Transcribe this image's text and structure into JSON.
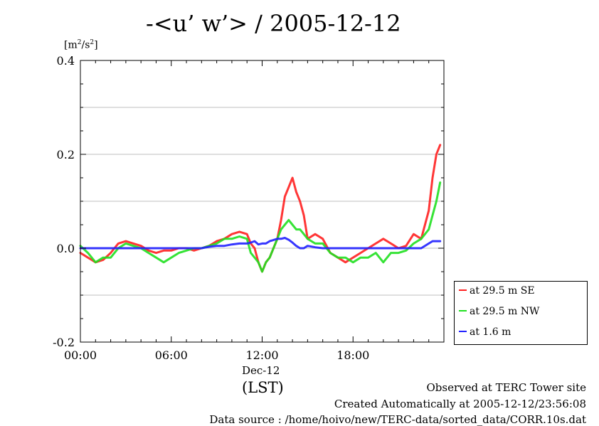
{
  "title": "-<u’ w’> / 2005-12-12",
  "unit_base": "[m",
  "unit_exp1": "2",
  "unit_mid": "/s",
  "unit_exp2": "2",
  "unit_end": "]",
  "date_label": "Dec-12",
  "lst_label": "(LST)",
  "footer": {
    "line1": "Observed at TERC Tower site",
    "line2": "Created Automatically at 2005-12-12/23:56:08",
    "line3": "Data source : /home/hoivo/new/TERC-data/sorted_data/CORR.10s.dat"
  },
  "chart_data": {
    "type": "line",
    "title": "-<u’ w’> / 2005-12-12",
    "ylabel": "[m2/s2]",
    "xlabel": "(LST)",
    "xlim": [
      0,
      24
    ],
    "ylim": [
      -0.2,
      0.4
    ],
    "grid": true,
    "legend_position": "right-bottom",
    "x_ticks": [
      "00:00",
      "06:00",
      "12:00",
      "18:00"
    ],
    "x_tick_values": [
      0,
      6,
      12,
      18
    ],
    "y_ticks": [
      "-0.2",
      "0.0",
      "0.2",
      "0.4"
    ],
    "y_tick_values": [
      -0.2,
      0.0,
      0.2,
      0.4
    ],
    "x": [
      0,
      0.5,
      1,
      1.5,
      2,
      2.5,
      3,
      3.5,
      4,
      4.5,
      5,
      5.5,
      6,
      6.5,
      7,
      7.5,
      8,
      8.5,
      9,
      9.5,
      10,
      10.5,
      11,
      11.25,
      11.5,
      11.75,
      12,
      12.25,
      12.5,
      13,
      13.25,
      13.5,
      13.75,
      14,
      14.25,
      14.5,
      14.75,
      15,
      15.5,
      16,
      16.5,
      17,
      17.5,
      18,
      18.5,
      19,
      19.5,
      20,
      20.5,
      21,
      21.5,
      22,
      22.5,
      23,
      23.25,
      23.5,
      23.75
    ],
    "series": [
      {
        "name": "at 29.5 m SE",
        "color": "#ff2020",
        "values": [
          -0.01,
          -0.02,
          -0.03,
          -0.025,
          -0.01,
          0.01,
          0.015,
          0.01,
          0.005,
          -0.005,
          -0.01,
          -0.005,
          -0.005,
          0.0,
          0.0,
          -0.005,
          0.0,
          0.005,
          0.015,
          0.02,
          0.03,
          0.035,
          0.03,
          0.01,
          0.0,
          -0.03,
          -0.05,
          -0.03,
          -0.02,
          0.02,
          0.06,
          0.11,
          0.13,
          0.15,
          0.12,
          0.1,
          0.07,
          0.02,
          0.03,
          0.02,
          -0.01,
          -0.02,
          -0.03,
          -0.02,
          -0.01,
          0.0,
          0.01,
          0.02,
          0.01,
          0.0,
          0.005,
          0.03,
          0.02,
          0.08,
          0.15,
          0.2,
          0.22
        ]
      },
      {
        "name": "at 29.5 m NW",
        "color": "#20e020",
        "values": [
          0.005,
          -0.01,
          -0.03,
          -0.02,
          -0.02,
          0.0,
          0.01,
          0.005,
          0.0,
          -0.01,
          -0.02,
          -0.03,
          -0.02,
          -0.01,
          -0.005,
          0.0,
          0.0,
          0.005,
          0.01,
          0.02,
          0.02,
          0.025,
          0.02,
          -0.01,
          -0.02,
          -0.03,
          -0.05,
          -0.03,
          -0.02,
          0.02,
          0.04,
          0.05,
          0.06,
          0.05,
          0.04,
          0.04,
          0.03,
          0.02,
          0.01,
          0.01,
          -0.01,
          -0.02,
          -0.02,
          -0.03,
          -0.02,
          -0.02,
          -0.01,
          -0.03,
          -0.01,
          -0.01,
          -0.005,
          0.01,
          0.02,
          0.04,
          0.07,
          0.1,
          0.14
        ]
      },
      {
        "name": "at 1.6 m",
        "color": "#2020ff",
        "values": [
          0.0,
          0.0,
          0.0,
          0.0,
          0.0,
          0.0,
          0.0,
          0.0,
          0.0,
          0.0,
          0.0,
          0.0,
          0.0,
          0.0,
          0.0,
          0.0,
          0.0,
          0.003,
          0.005,
          0.005,
          0.008,
          0.01,
          0.01,
          0.012,
          0.015,
          0.008,
          0.01,
          0.01,
          0.015,
          0.02,
          0.02,
          0.022,
          0.018,
          0.012,
          0.005,
          0.0,
          0.0,
          0.005,
          0.002,
          0.0,
          0.0,
          0.0,
          0.0,
          0.0,
          0.0,
          0.0,
          0.0,
          0.0,
          0.0,
          0.0,
          0.0,
          0.0,
          0.0,
          0.01,
          0.015,
          0.015,
          0.015
        ]
      }
    ]
  }
}
